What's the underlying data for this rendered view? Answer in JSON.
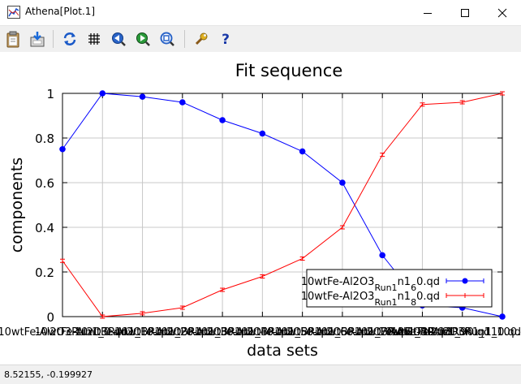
{
  "window": {
    "title": "Athena[Plot.1]",
    "minimize_glyph": "—",
    "maximize_glyph": "☐",
    "close_glyph": "✕"
  },
  "toolbar": {
    "icons": [
      "clipboard-icon",
      "save-to-disk-icon",
      "refresh-icon",
      "grid-icon",
      "zoom-back-icon",
      "zoom-forward-icon",
      "zoom-fit-icon",
      "wrench-icon",
      "help-icon"
    ]
  },
  "status": {
    "coords": "8.52155, -0.199927"
  },
  "chart_data": {
    "type": "line",
    "title": "Fit sequence",
    "xlabel": "data sets",
    "ylabel": "components",
    "xlim": [
      0,
      11
    ],
    "ylim": [
      0,
      1
    ],
    "yticks": [
      "0",
      "0.2",
      "0.4",
      "0.6",
      "0.8",
      "1"
    ],
    "grid": true,
    "legend_position": "bottom-right",
    "x": [
      0,
      1,
      2,
      3,
      4,
      5,
      6,
      7,
      8,
      9,
      10,
      11
    ],
    "xtick_labels": [
      "10wtFe-Al2O3Run1_0.qd",
      "10wtFe-Al2O3Run1_10.qd",
      "10wtFe-Al2O3Run1_20.qd",
      "10wtFe-Al2O3Run1_30.qd",
      "10wtFe-Al2O3Run1_40.qd",
      "10wtFe-Al2O3Run1_50.qd",
      "10wtFe-Al2O3Run1_60.qd",
      "10wtFe-Al2O3Run1_70.qd",
      "10wtFe-Al2O3Run1_80.qd",
      "10wtFe-Al2O3Run1_90.qd",
      "10wtFe-Al2O3Run1_100.qd",
      "10wtFe-Al2O3Run1_110.qd"
    ],
    "series": [
      {
        "name": "10wtFe-Al2O3Run1_60.qd",
        "name_parts": [
          "10wtFe-Al2O3",
          "Run1",
          "6",
          "0.qd"
        ],
        "color": "#0000ff",
        "marker": "circle",
        "values": [
          0.75,
          1.0,
          0.985,
          0.96,
          0.88,
          0.82,
          0.74,
          0.6,
          0.275,
          0.05,
          0.04,
          0.0
        ]
      },
      {
        "name": "10wtFe-Al2O3Run1_80.qd",
        "name_parts": [
          "10wtFe-Al2O3",
          "Run1",
          "8",
          "0.qd"
        ],
        "color": "#ff0000",
        "marker": "errorbar",
        "values": [
          0.25,
          0.0,
          0.015,
          0.04,
          0.12,
          0.18,
          0.26,
          0.4,
          0.725,
          0.95,
          0.96,
          1.0
        ]
      }
    ]
  }
}
